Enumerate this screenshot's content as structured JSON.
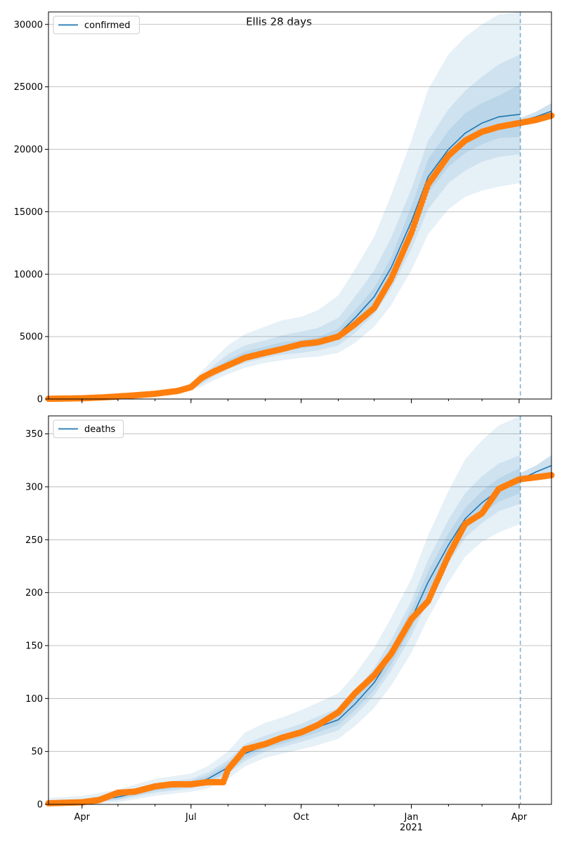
{
  "title": "Ellis 28 days",
  "colors": {
    "model_line": "#1f77b4",
    "observed": "#ff7f0e",
    "band": "#1f77b4",
    "vline": "#1f77b4",
    "grid": "#b0b0b0"
  },
  "chart_data": [
    {
      "type": "line",
      "legend_label": "confirmed",
      "legend_position": "top-left",
      "grid": "horizontal",
      "x_ticks": [
        {
          "date": "2020-04-01",
          "label": "Apr",
          "sub": ""
        },
        {
          "date": "2020-07-01",
          "label": "Jul",
          "sub": ""
        },
        {
          "date": "2020-10-01",
          "label": "Oct",
          "sub": ""
        },
        {
          "date": "2021-01-01",
          "label": "Jan",
          "sub": "2021"
        },
        {
          "date": "2021-04-01",
          "label": "Apr",
          "sub": ""
        }
      ],
      "y_ticks": [
        0,
        5000,
        10000,
        15000,
        20000,
        25000,
        30000
      ],
      "xlim": [
        "2020-03-04",
        "2021-04-28"
      ],
      "ylim": [
        0,
        31000
      ],
      "vline_date": "2021-04-02",
      "model_series": {
        "x": [
          "2020-03-04",
          "2020-04-01",
          "2020-05-01",
          "2020-06-01",
          "2020-06-20",
          "2020-07-01",
          "2020-07-10",
          "2020-07-20",
          "2020-08-01",
          "2020-08-15",
          "2020-09-01",
          "2020-09-15",
          "2020-10-01",
          "2020-10-15",
          "2020-11-01",
          "2020-11-15",
          "2020-12-01",
          "2020-12-15",
          "2021-01-01",
          "2021-01-15",
          "2021-02-01",
          "2021-02-15",
          "2021-03-01",
          "2021-03-15",
          "2021-04-02"
        ],
        "y": [
          60,
          100,
          250,
          450,
          600,
          950,
          1500,
          2200,
          2900,
          3500,
          3900,
          4200,
          4400,
          4600,
          5200,
          6500,
          8200,
          10500,
          14200,
          17800,
          20000,
          21300,
          22100,
          22600,
          22800
        ]
      },
      "bands": [
        {
          "level": "outer",
          "x": [
            "2020-03-04",
            "2020-04-01",
            "2020-05-01",
            "2020-06-01",
            "2020-06-20",
            "2020-07-01",
            "2020-07-10",
            "2020-07-20",
            "2020-08-01",
            "2020-08-15",
            "2020-09-01",
            "2020-09-15",
            "2020-10-01",
            "2020-10-15",
            "2020-11-01",
            "2020-11-15",
            "2020-12-01",
            "2020-12-15",
            "2021-01-01",
            "2021-01-15",
            "2021-02-01",
            "2021-02-15",
            "2021-03-01",
            "2021-03-15",
            "2021-04-02"
          ],
          "lower": [
            30,
            60,
            150,
            300,
            420,
            700,
            1000,
            1500,
            2000,
            2500,
            2900,
            3100,
            3300,
            3400,
            3700,
            4500,
            5800,
            7500,
            10300,
            13200,
            15200,
            16200,
            16700,
            17000,
            17300
          ],
          "upper": [
            100,
            160,
            380,
            650,
            850,
            1300,
            2200,
            3200,
            4300,
            5200,
            5800,
            6300,
            6600,
            7100,
            8300,
            10400,
            13000,
            16300,
            20700,
            24800,
            27600,
            29000,
            30000,
            30800,
            31000
          ]
        },
        {
          "level": "middle",
          "x": [
            "2020-03-04",
            "2020-04-01",
            "2020-05-01",
            "2020-06-01",
            "2020-06-20",
            "2020-07-01",
            "2020-07-10",
            "2020-07-20",
            "2020-08-01",
            "2020-08-15",
            "2020-09-01",
            "2020-09-15",
            "2020-10-01",
            "2020-10-15",
            "2020-11-01",
            "2020-11-15",
            "2020-12-01",
            "2020-12-15",
            "2021-01-01",
            "2021-01-15",
            "2021-02-01",
            "2021-02-15",
            "2021-03-01",
            "2021-03-15",
            "2021-04-02"
          ],
          "lower": [
            40,
            75,
            190,
            360,
            500,
            800,
            1200,
            1800,
            2400,
            2900,
            3300,
            3550,
            3700,
            3900,
            4300,
            5300,
            6800,
            8800,
            12000,
            15200,
            17300,
            18300,
            19000,
            19400,
            19600
          ],
          "upper": [
            85,
            130,
            320,
            560,
            730,
            1130,
            1850,
            2700,
            3600,
            4300,
            4700,
            5100,
            5400,
            5700,
            6500,
            8200,
            10300,
            12900,
            16800,
            20700,
            23200,
            24700,
            25800,
            26800,
            27600
          ]
        },
        {
          "level": "inner",
          "x": [
            "2020-03-04",
            "2020-04-01",
            "2020-05-01",
            "2020-06-01",
            "2020-06-20",
            "2020-07-01",
            "2020-07-10",
            "2020-07-20",
            "2020-08-01",
            "2020-08-15",
            "2020-09-01",
            "2020-09-15",
            "2020-10-01",
            "2020-10-15",
            "2020-11-01",
            "2020-11-15",
            "2020-12-01",
            "2020-12-15",
            "2021-01-01",
            "2021-01-15",
            "2021-02-01",
            "2021-02-15",
            "2021-03-01",
            "2021-03-15",
            "2021-04-02"
          ],
          "lower": [
            50,
            85,
            220,
            400,
            550,
            880,
            1350,
            2000,
            2650,
            3200,
            3600,
            3850,
            4050,
            4250,
            4750,
            5900,
            7500,
            9700,
            13000,
            16500,
            18600,
            19700,
            20400,
            20900,
            21000
          ],
          "upper": [
            70,
            115,
            280,
            500,
            650,
            1020,
            1650,
            2400,
            3150,
            3800,
            4200,
            4550,
            4750,
            4950,
            5650,
            7100,
            8900,
            11300,
            15400,
            19200,
            21500,
            22900,
            23700,
            24300,
            25200
          ]
        }
      ],
      "forecast_band": {
        "x": [
          "2021-04-02",
          "2021-04-15",
          "2021-04-28"
        ],
        "lower": [
          22000,
          22200,
          22400
        ],
        "upper": [
          22500,
          23000,
          23700
        ]
      },
      "observed": {
        "x": [
          "2020-03-04",
          "2020-04-01",
          "2020-04-20",
          "2020-05-10",
          "2020-06-01",
          "2020-06-20",
          "2020-07-01",
          "2020-07-10",
          "2020-07-20",
          "2020-08-01",
          "2020-08-15",
          "2020-09-01",
          "2020-09-15",
          "2020-10-01",
          "2020-10-15",
          "2020-11-01",
          "2020-11-15",
          "2020-12-01",
          "2020-12-15",
          "2021-01-01",
          "2021-01-15",
          "2021-02-01",
          "2021-02-15",
          "2021-03-01",
          "2021-03-15",
          "2021-04-01",
          "2021-04-15",
          "2021-04-28"
        ],
        "y": [
          20,
          60,
          140,
          260,
          420,
          650,
          950,
          1700,
          2200,
          2700,
          3300,
          3700,
          4000,
          4400,
          4550,
          5000,
          6000,
          7300,
          9600,
          13300,
          17200,
          19500,
          20700,
          21400,
          21800,
          22100,
          22350,
          22700
        ]
      }
    },
    {
      "type": "line",
      "legend_label": "deaths",
      "legend_position": "top-left",
      "grid": "horizontal",
      "x_ticks": [
        {
          "date": "2020-04-01",
          "label": "Apr",
          "sub": ""
        },
        {
          "date": "2020-07-01",
          "label": "Jul",
          "sub": ""
        },
        {
          "date": "2020-10-01",
          "label": "Oct",
          "sub": ""
        },
        {
          "date": "2021-01-01",
          "label": "Jan",
          "sub": "2021"
        },
        {
          "date": "2021-04-01",
          "label": "Apr",
          "sub": ""
        }
      ],
      "y_ticks": [
        0,
        50,
        100,
        150,
        200,
        250,
        300,
        350
      ],
      "xlim": [
        "2020-03-04",
        "2021-04-28"
      ],
      "ylim": [
        0,
        367
      ],
      "vline_date": "2021-04-02",
      "model_series": {
        "x": [
          "2020-03-04",
          "2020-04-01",
          "2020-05-01",
          "2020-06-01",
          "2020-07-01",
          "2020-07-15",
          "2020-08-01",
          "2020-08-15",
          "2020-09-01",
          "2020-09-15",
          "2020-10-01",
          "2020-10-15",
          "2020-11-01",
          "2020-11-15",
          "2020-12-01",
          "2020-12-15",
          "2021-01-01",
          "2021-01-15",
          "2021-02-01",
          "2021-02-15",
          "2021-03-01",
          "2021-03-15",
          "2021-04-02"
        ],
        "y": [
          1,
          2,
          7,
          15,
          19,
          24,
          35,
          48,
          56,
          61,
          67,
          73,
          80,
          95,
          115,
          140,
          175,
          210,
          245,
          270,
          285,
          297,
          307
        ]
      },
      "bands": [
        {
          "level": "outer",
          "x": [
            "2020-03-04",
            "2020-04-01",
            "2020-05-01",
            "2020-06-01",
            "2020-07-01",
            "2020-07-15",
            "2020-08-01",
            "2020-08-15",
            "2020-09-01",
            "2020-09-15",
            "2020-10-01",
            "2020-10-15",
            "2020-11-01",
            "2020-11-15",
            "2020-12-01",
            "2020-12-15",
            "2021-01-01",
            "2021-01-15",
            "2021-02-01",
            "2021-02-15",
            "2021-03-01",
            "2021-03-15",
            "2021-04-02"
          ],
          "lower": [
            0,
            0,
            2,
            8,
            12,
            15,
            24,
            36,
            44,
            48,
            52,
            56,
            62,
            74,
            91,
            112,
            143,
            176,
            210,
            234,
            248,
            257,
            265
          ],
          "upper": [
            6,
            8,
            14,
            24,
            29,
            36,
            50,
            68,
            77,
            82,
            89,
            96,
            105,
            123,
            148,
            176,
            213,
            254,
            296,
            326,
            344,
            358,
            367
          ]
        },
        {
          "level": "middle",
          "x": [
            "2020-03-04",
            "2020-04-01",
            "2020-05-01",
            "2020-06-01",
            "2020-07-01",
            "2020-07-15",
            "2020-08-01",
            "2020-08-15",
            "2020-09-01",
            "2020-09-15",
            "2020-10-01",
            "2020-10-15",
            "2020-11-01",
            "2020-11-15",
            "2020-12-01",
            "2020-12-15",
            "2021-01-01",
            "2021-01-15",
            "2021-02-01",
            "2021-02-15",
            "2021-03-01",
            "2021-03-15",
            "2021-04-02"
          ],
          "lower": [
            0,
            1,
            4,
            11,
            15,
            19,
            29,
            41,
            50,
            54,
            59,
            64,
            70,
            84,
            103,
            126,
            159,
            193,
            228,
            252,
            266,
            277,
            284
          ],
          "upper": [
            4,
            5,
            11,
            20,
            24,
            30,
            42,
            57,
            65,
            70,
            76,
            83,
            91,
            107,
            129,
            155,
            192,
            231,
            269,
            294,
            310,
            322,
            330
          ]
        },
        {
          "level": "inner",
          "x": [
            "2020-03-04",
            "2020-04-01",
            "2020-05-01",
            "2020-06-01",
            "2020-07-01",
            "2020-07-15",
            "2020-08-01",
            "2020-08-15",
            "2020-09-01",
            "2020-09-15",
            "2020-10-01",
            "2020-10-15",
            "2020-11-01",
            "2020-11-15",
            "2020-12-01",
            "2020-12-15",
            "2021-01-01",
            "2021-01-15",
            "2021-02-01",
            "2021-02-15",
            "2021-03-01",
            "2021-03-15",
            "2021-04-02"
          ],
          "lower": [
            0,
            1,
            5,
            13,
            17,
            21,
            31,
            44,
            53,
            57,
            63,
            68,
            75,
            89,
            108,
            132,
            166,
            200,
            235,
            260,
            274,
            286,
            294
          ],
          "upper": [
            3,
            4,
            9,
            18,
            22,
            27,
            39,
            53,
            60,
            65,
            72,
            78,
            86,
            101,
            122,
            148,
            184,
            220,
            256,
            280,
            296,
            308,
            318
          ]
        }
      ],
      "forecast_band": {
        "x": [
          "2021-04-02",
          "2021-04-15",
          "2021-04-28"
        ],
        "lower": [
          305,
          308,
          310
        ],
        "upper": [
          313,
          320,
          330
        ]
      },
      "observed": {
        "x": [
          "2020-03-04",
          "2020-04-01",
          "2020-04-15",
          "2020-05-01",
          "2020-05-15",
          "2020-06-01",
          "2020-06-15",
          "2020-07-01",
          "2020-07-15",
          "2020-07-28",
          "2020-08-01",
          "2020-08-15",
          "2020-09-01",
          "2020-09-15",
          "2020-10-01",
          "2020-10-15",
          "2020-11-01",
          "2020-11-15",
          "2020-12-01",
          "2020-12-15",
          "2021-01-01",
          "2021-01-15",
          "2021-02-01",
          "2021-02-15",
          "2021-03-01",
          "2021-03-15",
          "2021-04-01",
          "2021-04-15",
          "2021-04-28"
        ],
        "y": [
          1,
          2,
          4,
          11,
          12,
          17,
          19,
          19,
          21,
          21,
          33,
          52,
          57,
          63,
          68,
          75,
          87,
          105,
          122,
          142,
          175,
          192,
          235,
          265,
          275,
          298,
          307,
          309,
          311
        ]
      }
    }
  ]
}
